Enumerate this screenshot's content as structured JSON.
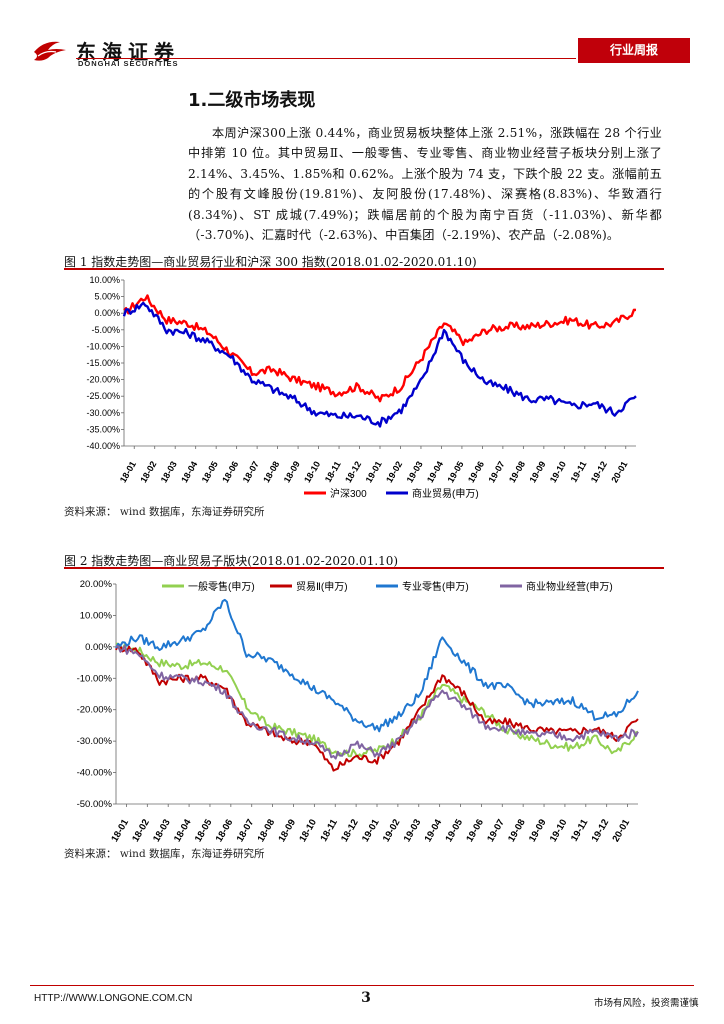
{
  "header": {
    "brand_cn": "东海证券",
    "brand_en": "DONGHAI SECURITIES",
    "report_type": "行业周报",
    "accent_color": "#c0000a"
  },
  "section": {
    "title": "1.二级市场表现",
    "paragraph": "本周沪深300上涨 0.44%，商业贸易板块整体上涨 2.51%，涨跌幅在 28 个行业中排第 10 位。其中贸易Ⅱ、一般零售、专业零售、商业物业经营子板块分别上涨了 2.14%、3.45%、1.85%和 0.62%。上涨个股为 74 支，下跌个股 22 支。涨幅前五的个股有文峰股份(19.81%)、友阿股份(17.48%)、深赛格(8.83%)、华致酒行(8.34%)、ST 成城(7.49%)；跌幅居前的个股为南宁百货（-11.03%)、新华都（-3.70%)、汇嘉时代（-2.63%)、中百集团（-2.19%)、农产品（-2.08%)。"
  },
  "figure1": {
    "caption": "图 1   指数走势图—商业贸易行业和沪深 300 指数(2018.01.02-2020.01.10)",
    "source": "资料来源：   wind 数据库，东海证券研究所"
  },
  "figure2": {
    "caption": "图 2   指数走势图—商业贸易子版块(2018.01.02-2020.01.10)",
    "source": "资料来源：   wind 数据库，东海证券研究所"
  },
  "chart_data": [
    {
      "type": "line",
      "x_ticks": [
        "18-01",
        "18-02",
        "18-03",
        "18-04",
        "18-05",
        "18-06",
        "18-07",
        "18-08",
        "18-09",
        "18-10",
        "18-11",
        "18-12",
        "19-01",
        "19-02",
        "19-03",
        "19-04",
        "19-05",
        "19-06",
        "19-07",
        "19-08",
        "19-09",
        "19-10",
        "19-11",
        "19-12",
        "20-01"
      ],
      "y_ticks": [
        "10.00%",
        "5.00%",
        "0.00%",
        "-5.00%",
        "-10.00%",
        "-15.00%",
        "-20.00%",
        "-25.00%",
        "-30.00%",
        "-35.00%",
        "-40.00%"
      ],
      "ylim": [
        -40,
        10
      ],
      "grid": false,
      "legend_position": "bottom",
      "series": [
        {
          "name": "沪深300",
          "color": "#ff0000",
          "values": [
            0,
            5,
            -2,
            -3,
            -6,
            -12,
            -18,
            -17,
            -20,
            -22,
            -24,
            -22,
            -26,
            -22,
            -13,
            -3,
            -9,
            -5,
            -4,
            -4,
            -3,
            -2,
            -4,
            -3,
            1
          ]
        },
        {
          "name": "商业贸易(申万)",
          "color": "#0000cc",
          "values": [
            0,
            3,
            -5,
            -6,
            -9,
            -13,
            -20,
            -23,
            -26,
            -30,
            -31,
            -31,
            -33,
            -29,
            -20,
            -5,
            -15,
            -21,
            -23,
            -26,
            -26,
            -28,
            -27,
            -30,
            -25
          ]
        }
      ]
    },
    {
      "type": "line",
      "x_ticks": [
        "18-01",
        "18-02",
        "18-03",
        "18-04",
        "18-05",
        "18-06",
        "18-07",
        "18-08",
        "18-09",
        "18-10",
        "18-11",
        "18-12",
        "19-01",
        "19-02",
        "19-03",
        "19-04",
        "19-05",
        "19-06",
        "19-07",
        "19-08",
        "19-09",
        "19-10",
        "19-11",
        "19-12",
        "20-01"
      ],
      "y_ticks": [
        "20.00%",
        "10.00%",
        "0.00%",
        "-10.00%",
        "-20.00%",
        "-30.00%",
        "-40.00%",
        "-50.00%"
      ],
      "ylim": [
        -50,
        20
      ],
      "grid": false,
      "legend_position": "top",
      "series": [
        {
          "name": "一般零售(申万)",
          "color": "#92d050",
          "values": [
            0,
            -1,
            -5,
            -6,
            -5,
            -7,
            -19,
            -25,
            -27,
            -29,
            -33,
            -34,
            -33,
            -29,
            -22,
            -12,
            -17,
            -21,
            -27,
            -29,
            -31,
            -32,
            -29,
            -34,
            -27
          ]
        },
        {
          "name": "贸易Ⅱ(申万)",
          "color": "#c00000",
          "values": [
            0,
            -1,
            -11,
            -10,
            -10,
            -13,
            -24,
            -27,
            -30,
            -30,
            -39,
            -35,
            -36,
            -30,
            -20,
            -9,
            -15,
            -24,
            -24,
            -26,
            -27,
            -27,
            -26,
            -29,
            -23
          ]
        },
        {
          "name": "专业零售(申万)",
          "color": "#1f77d0",
          "values": [
            0,
            3,
            0,
            2,
            5,
            15,
            -2,
            -4,
            -8,
            -13,
            -17,
            -23,
            -26,
            -22,
            -15,
            3,
            -5,
            -12,
            -13,
            -18,
            -18,
            -17,
            -22,
            -22,
            -14
          ]
        },
        {
          "name": "商业物业经营(申万)",
          "color": "#8064a2",
          "values": [
            0,
            -2,
            -9,
            -10,
            -11,
            -14,
            -24,
            -26,
            -29,
            -30,
            -35,
            -31,
            -34,
            -30,
            -22,
            -14,
            -19,
            -25,
            -26,
            -28,
            -28,
            -29,
            -27,
            -29,
            -27
          ]
        }
      ]
    }
  ],
  "footer": {
    "url": "HTTP://WWW.LONGONE.COM.CN",
    "page": "3",
    "disclaimer": "市场有风险，投资需谨慎"
  }
}
